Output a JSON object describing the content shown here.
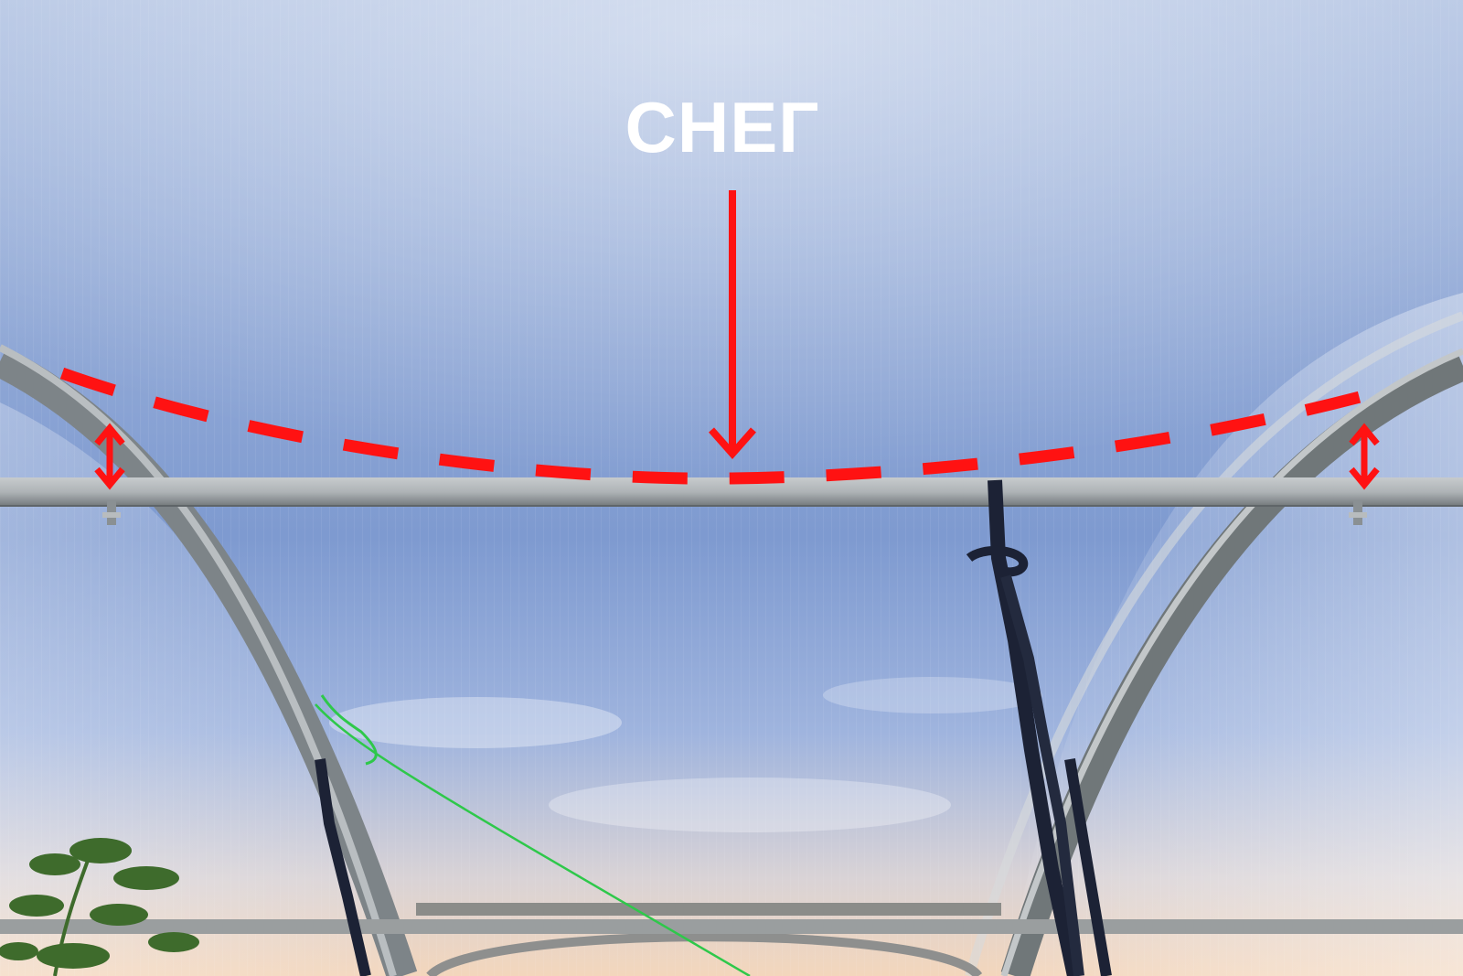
{
  "annotation": {
    "label": "СНЕГ",
    "color": "#ff1212"
  },
  "scene": {
    "sky_top": "#a9bde0",
    "sky_bottom": "#f1d9c2",
    "frame_color": "#8d9498"
  }
}
